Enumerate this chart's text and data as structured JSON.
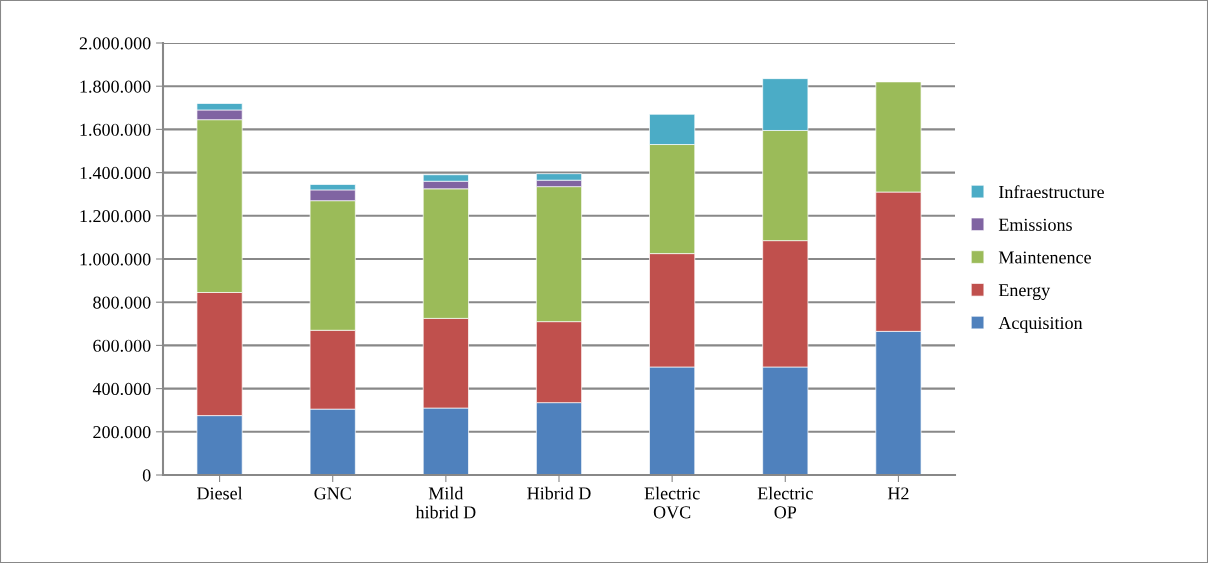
{
  "chart_data": {
    "type": "bar",
    "stacked": true,
    "categories": [
      "Diesel",
      "GNC",
      "Mild\nhibrid D",
      "Hibrid D",
      "Electric\nOVC",
      "Electric\nOP",
      "H2"
    ],
    "series": [
      {
        "name": "Acquisition",
        "color": "#4f81bd",
        "values": [
          275000,
          305000,
          310000,
          335000,
          500000,
          500000,
          665000
        ]
      },
      {
        "name": "Energy",
        "color": "#c0504d",
        "values": [
          570000,
          365000,
          415000,
          375000,
          525000,
          585000,
          645000
        ]
      },
      {
        "name": "Maintenence",
        "color": "#9bbb59",
        "values": [
          800000,
          600000,
          600000,
          625000,
          505000,
          510000,
          510000
        ]
      },
      {
        "name": "Emissions",
        "color": "#8064a2",
        "values": [
          45000,
          50000,
          35000,
          30000,
          null,
          null,
          null
        ]
      },
      {
        "name": "Infraestructure",
        "color": "#4bacc6",
        "values": [
          30000,
          25000,
          30000,
          30000,
          140000,
          240000,
          null
        ]
      }
    ],
    "ylim": [
      0,
      2000000
    ],
    "yticks": [
      0,
      {
        "value": 200000,
        "label": "200.000"
      },
      {
        "value": 400000,
        "label": "400.000"
      },
      {
        "value": 600000,
        "label": "600.000"
      },
      {
        "value": 800000,
        "label": "800.000"
      },
      {
        "value": 1000000,
        "label": "1.000.000"
      },
      {
        "value": 1200000,
        "label": "1.200.000"
      },
      {
        "value": 1400000,
        "label": "1.400.000"
      },
      {
        "value": 1600000,
        "label": "1.600.000"
      },
      {
        "value": 1800000,
        "label": "1.800.000"
      },
      {
        "value": 2000000,
        "label": "2.000.000"
      }
    ],
    "grid": "y",
    "legend": "right"
  }
}
